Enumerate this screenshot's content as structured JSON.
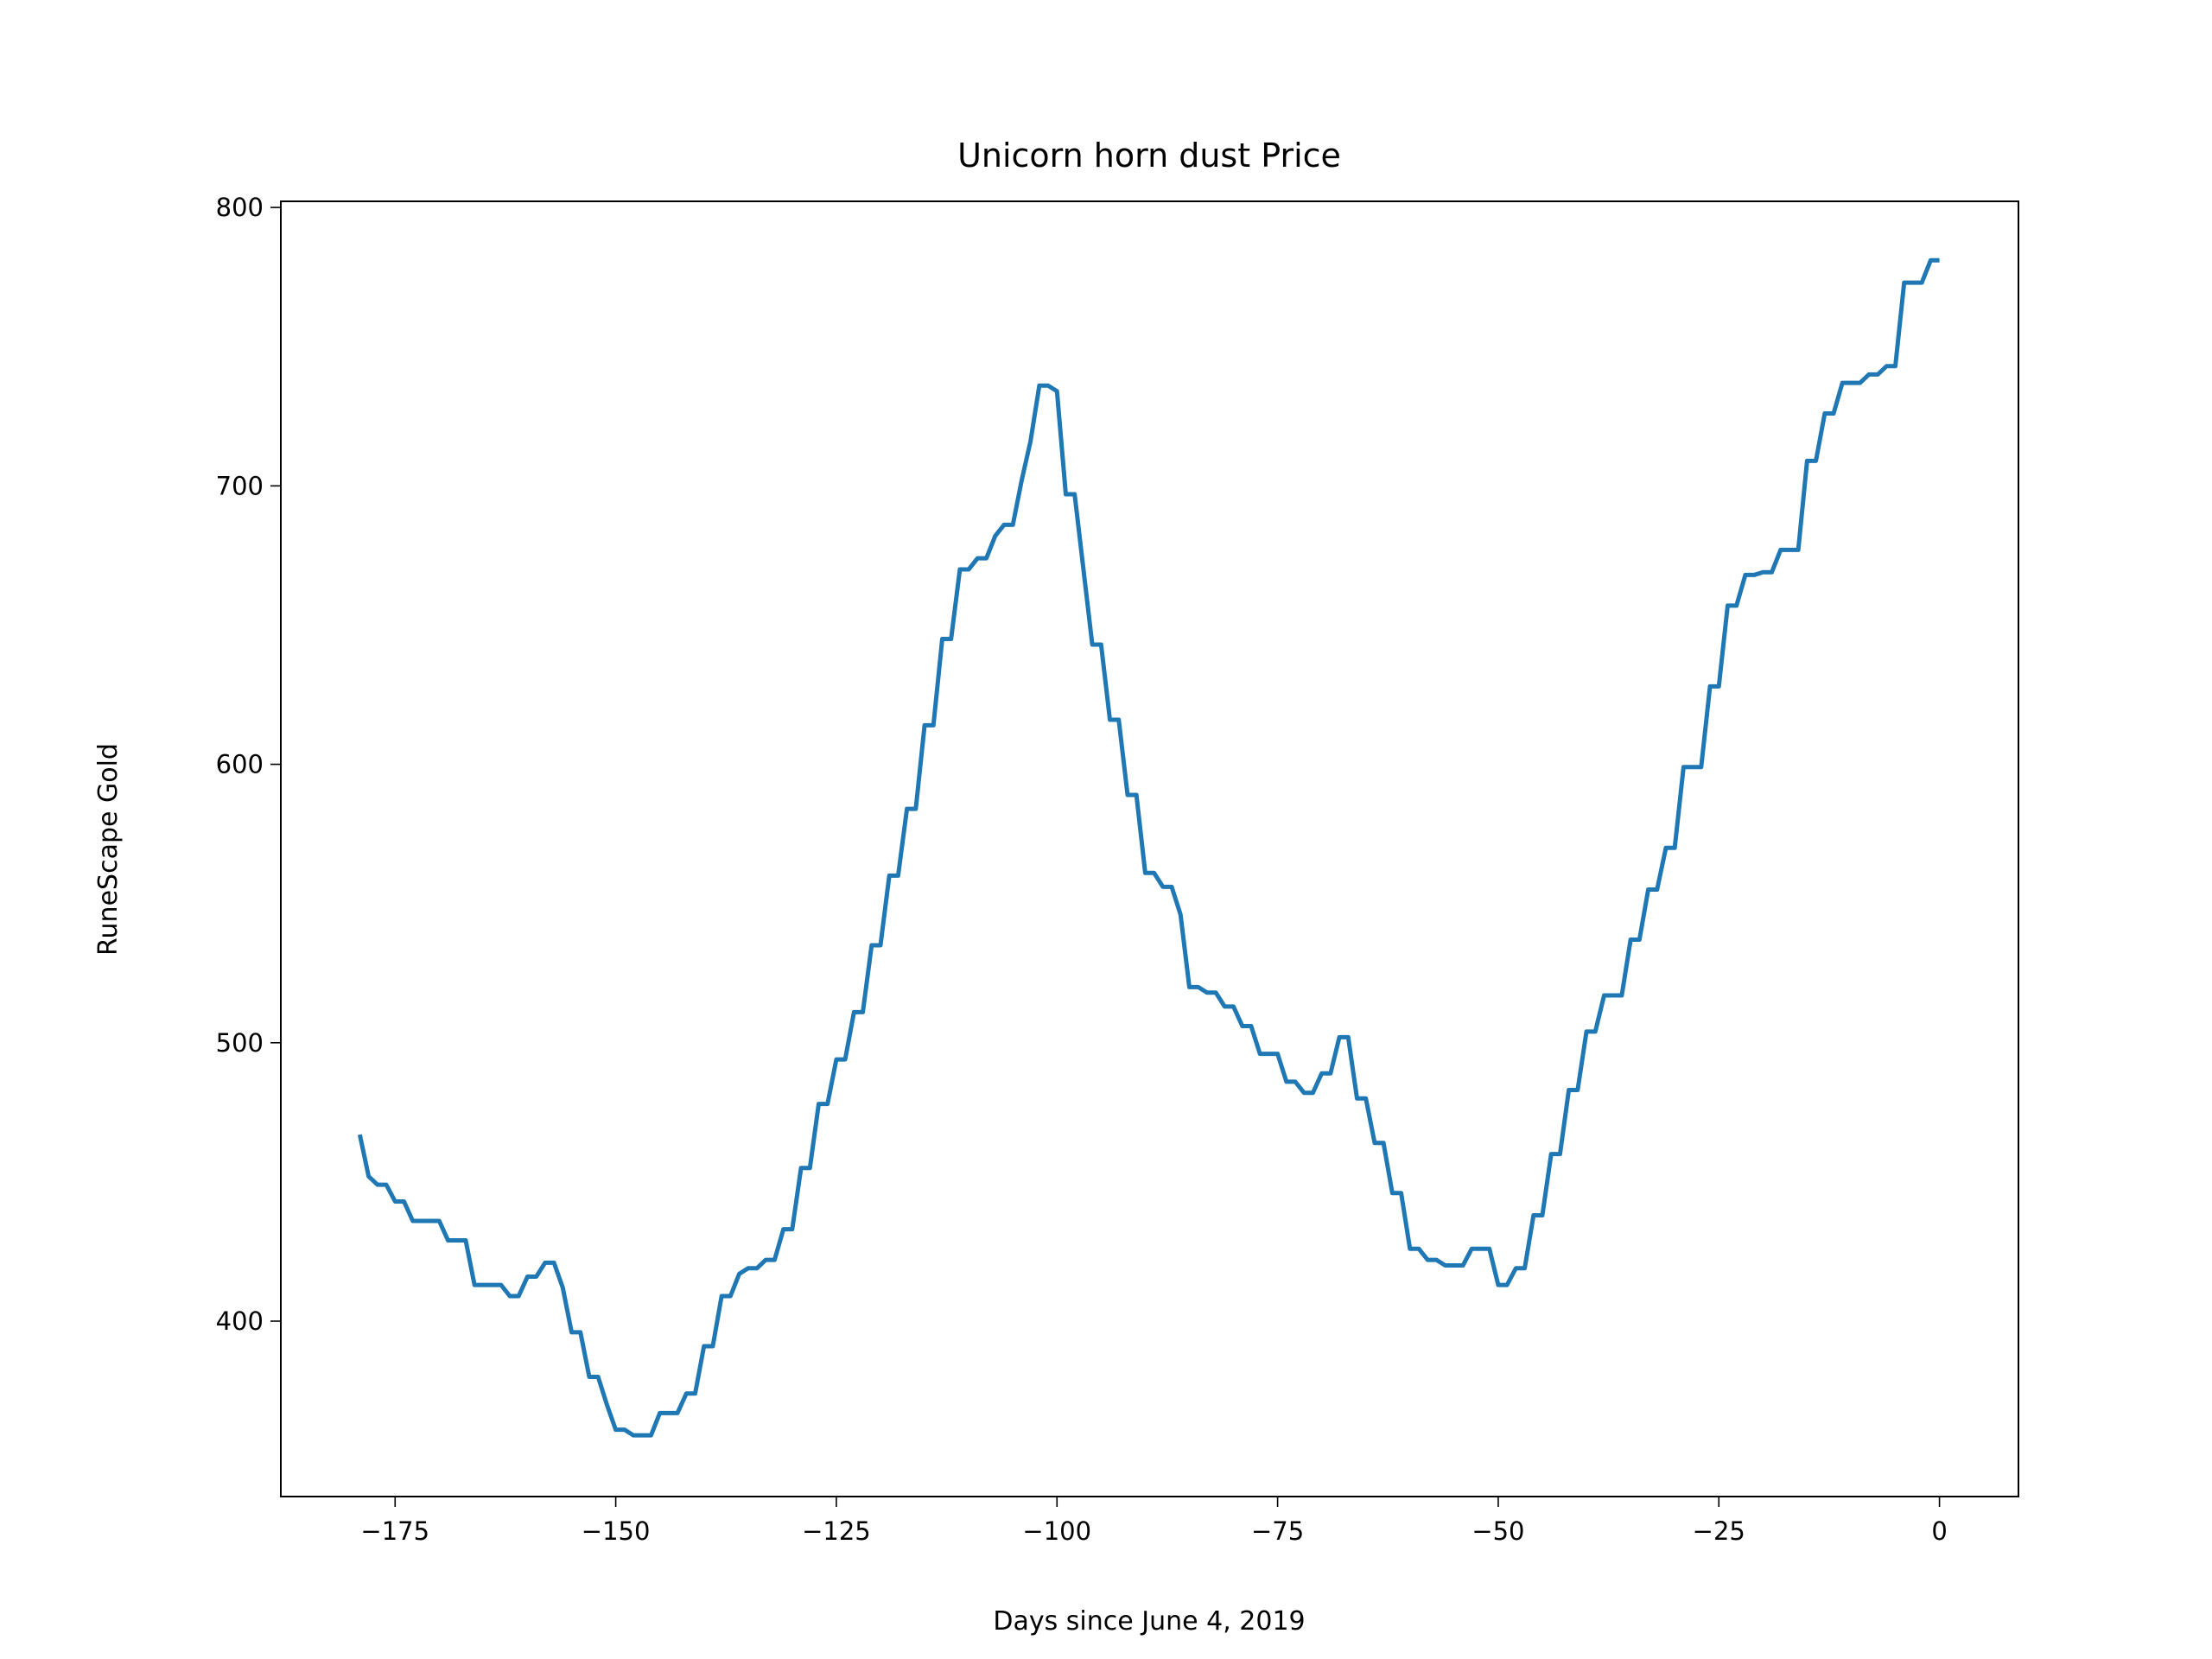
{
  "chart_data": {
    "type": "line",
    "title": "Unicorn horn dust Price",
    "x_label": "Days since June 4, 2019",
    "y_label": "RuneScape Gold",
    "x": [
      -179,
      -178,
      -177,
      -176,
      -175,
      -174,
      -173,
      -172,
      -171,
      -170,
      -169,
      -168,
      -167,
      -166,
      -165,
      -164,
      -163,
      -162,
      -161,
      -160,
      -159,
      -158,
      -157,
      -156,
      -155,
      -154,
      -153,
      -152,
      -151,
      -150,
      -149,
      -148,
      -147,
      -146,
      -145,
      -144,
      -143,
      -142,
      -141,
      -140,
      -139,
      -138,
      -137,
      -136,
      -135,
      -134,
      -133,
      -132,
      -131,
      -130,
      -129,
      -128,
      -127,
      -126,
      -125,
      -124,
      -123,
      -122,
      -121,
      -120,
      -119,
      -118,
      -117,
      -116,
      -115,
      -114,
      -113,
      -112,
      -111,
      -110,
      -109,
      -108,
      -107,
      -106,
      -105,
      -104,
      -103,
      -102,
      -101,
      -100,
      -99,
      -98,
      -97,
      -96,
      -95,
      -94,
      -93,
      -92,
      -91,
      -90,
      -89,
      -88,
      -87,
      -86,
      -85,
      -84,
      -83,
      -82,
      -81,
      -80,
      -79,
      -78,
      -77,
      -76,
      -75,
      -74,
      -73,
      -72,
      -71,
      -70,
      -69,
      -68,
      -67,
      -66,
      -65,
      -64,
      -63,
      -62,
      -61,
      -60,
      -59,
      -58,
      -57,
      -56,
      -55,
      -54,
      -53,
      -52,
      -51,
      -50,
      -49,
      -48,
      -47,
      -46,
      -45,
      -44,
      -43,
      -42,
      -41,
      -40,
      -39,
      -38,
      -37,
      -36,
      -35,
      -34,
      -33,
      -32,
      -31,
      -30,
      -29,
      -28,
      -27,
      -26,
      -25,
      -24,
      -23,
      -22,
      -21,
      -20,
      -19,
      -18,
      -17,
      -16,
      -15,
      -14,
      -13,
      -12,
      -11,
      -10,
      -9,
      -8,
      -7,
      -6,
      -5,
      -4,
      -3,
      -2,
      -1,
      0
    ],
    "series": [
      {
        "color": "#1f77b4",
        "values": [
          467,
          452,
          449,
          449,
          443,
          443,
          436,
          436,
          436,
          436,
          429,
          429,
          429,
          413,
          413,
          413,
          413,
          409,
          409,
          416,
          416,
          421,
          421,
          412,
          396,
          396,
          380,
          380,
          370,
          361,
          361,
          359,
          359,
          359,
          367,
          367,
          367,
          374,
          374,
          391,
          391,
          409,
          409,
          417,
          419,
          419,
          422,
          422,
          433,
          433,
          455,
          455,
          478,
          478,
          494,
          494,
          511,
          511,
          535,
          535,
          560,
          560,
          584,
          584,
          614,
          614,
          645,
          645,
          670,
          670,
          674,
          674,
          682,
          686,
          686,
          702,
          716,
          736,
          736,
          734,
          697,
          697,
          670,
          643,
          643,
          616,
          616,
          589,
          589,
          561,
          561,
          556,
          556,
          546,
          520,
          520,
          518,
          518,
          513,
          513,
          506,
          506,
          496,
          496,
          496,
          486,
          486,
          482,
          482,
          489,
          489,
          502,
          502,
          480,
          480,
          464,
          464,
          446,
          446,
          426,
          426,
          422,
          422,
          420,
          420,
          420,
          426,
          426,
          426,
          413,
          413,
          419,
          419,
          438,
          438,
          460,
          460,
          483,
          483,
          504,
          504,
          517,
          517,
          517,
          537,
          537,
          555,
          555,
          570,
          570,
          599,
          599,
          599,
          628,
          628,
          657,
          657,
          668,
          668,
          669,
          669,
          677,
          677,
          677,
          709,
          709,
          726,
          726,
          737,
          737,
          737,
          740,
          740,
          743,
          743,
          773,
          773,
          773,
          781,
          781
        ]
      }
    ],
    "xlim": [
      -187.95,
      8.95
    ],
    "ylim": [
      337,
      802.2
    ],
    "xticks": [
      {
        "value": -175,
        "label": "−175"
      },
      {
        "value": -150,
        "label": "−150"
      },
      {
        "value": -125,
        "label": "−125"
      },
      {
        "value": -100,
        "label": "−100"
      },
      {
        "value": -75,
        "label": "−75"
      },
      {
        "value": -50,
        "label": "−50"
      },
      {
        "value": -25,
        "label": "−25"
      },
      0
    ],
    "yticks": [
      400,
      500,
      600,
      700,
      800
    ]
  }
}
